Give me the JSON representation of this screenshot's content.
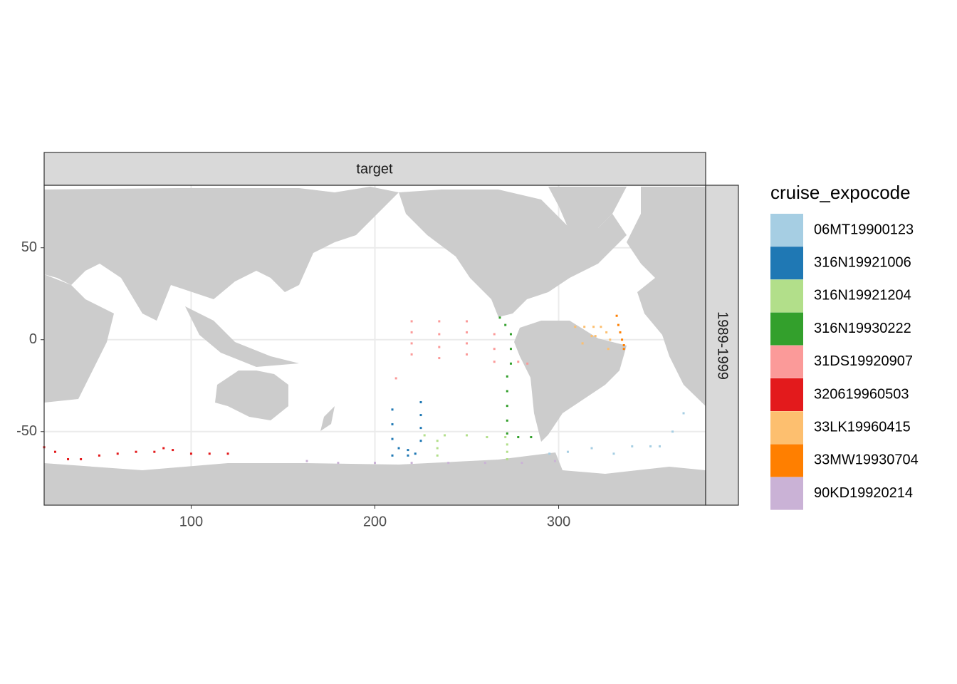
{
  "chart_data": {
    "type": "scatter",
    "strip_top": "target",
    "strip_right": "1989-1999",
    "legend_title": "cruise_expocode",
    "xlim": [
      20,
      380
    ],
    "ylim": [
      -90,
      84
    ],
    "xticks": [
      100,
      200,
      300
    ],
    "yticks": [
      -50,
      0,
      50
    ],
    "grid": true,
    "series": [
      {
        "name": "06MT19900123",
        "color": "#a6cee3",
        "x": [
          295,
          305,
          318,
          330,
          340,
          350,
          355,
          362,
          368
        ],
        "y": [
          -62,
          -61,
          -59,
          -62,
          -58,
          -58,
          -58,
          -50,
          -40
        ]
      },
      {
        "name": "316N19921006",
        "color": "#1f78b4",
        "x": [
          209.5,
          209.5,
          209.5,
          209.5,
          213,
          218,
          222,
          225,
          225,
          225,
          225,
          218
        ],
        "y": [
          -38,
          -46,
          -54,
          -63,
          -59,
          -60,
          -62,
          -55,
          -48,
          -41,
          -34,
          -63
        ]
      },
      {
        "name": "316N19921204",
        "color": "#b2df8a",
        "x": [
          227,
          238,
          250,
          261,
          271,
          234,
          234,
          234,
          272,
          272,
          272
        ],
        "y": [
          -52,
          -52,
          -52,
          -53,
          -53,
          -55,
          -59,
          -63,
          -57,
          -61,
          -65
        ]
      },
      {
        "name": "316N19930222",
        "color": "#33a02c",
        "x": [
          268,
          271,
          274,
          274,
          274,
          272,
          272,
          272,
          272,
          272,
          278,
          285
        ],
        "y": [
          12,
          8,
          3,
          -5,
          -13,
          -20,
          -28,
          -36,
          -44,
          -51,
          -53,
          -53
        ]
      },
      {
        "name": "31DS19920907",
        "color": "#fb9a99",
        "x": [
          220,
          220,
          220,
          220,
          235,
          235,
          235,
          235,
          250,
          250,
          250,
          250,
          265,
          265,
          265,
          211.5,
          278,
          283
        ],
        "y": [
          10,
          4,
          -2,
          -8,
          10,
          3,
          -4,
          -10,
          10,
          4,
          -2,
          -8,
          3,
          -5,
          -12,
          -21,
          -12,
          -13
        ]
      },
      {
        "name": "320619960503",
        "color": "#e31a1c",
        "x": [
          20,
          26,
          33,
          40,
          50,
          60,
          70,
          80,
          85,
          90,
          100,
          110,
          120
        ],
        "y": [
          -58.5,
          -61,
          -65,
          -65,
          -63,
          -62,
          -61,
          -61,
          -59,
          -60,
          -62,
          -62,
          -62
        ]
      },
      {
        "name": "33LK19960415",
        "color": "#fdbf6f",
        "x": [
          309,
          314,
          319,
          323,
          318,
          313,
          320,
          326,
          328,
          327
        ],
        "y": [
          7,
          7,
          7,
          7,
          2,
          -2,
          2,
          4,
          0,
          -5
        ]
      },
      {
        "name": "33MW19930704",
        "color": "#ff7f00",
        "x": [
          331.6,
          332.5,
          333.5,
          334.5,
          335.5,
          335.5
        ],
        "y": [
          13,
          8,
          4,
          0,
          -3,
          -5
        ]
      },
      {
        "name": "90KD19920214",
        "color": "#cab2d6",
        "x": [
          163,
          180,
          200,
          220,
          240,
          260,
          280,
          298
        ],
        "y": [
          -66,
          -67,
          -67,
          -67,
          -67,
          -67,
          -67,
          -66
        ]
      }
    ]
  }
}
